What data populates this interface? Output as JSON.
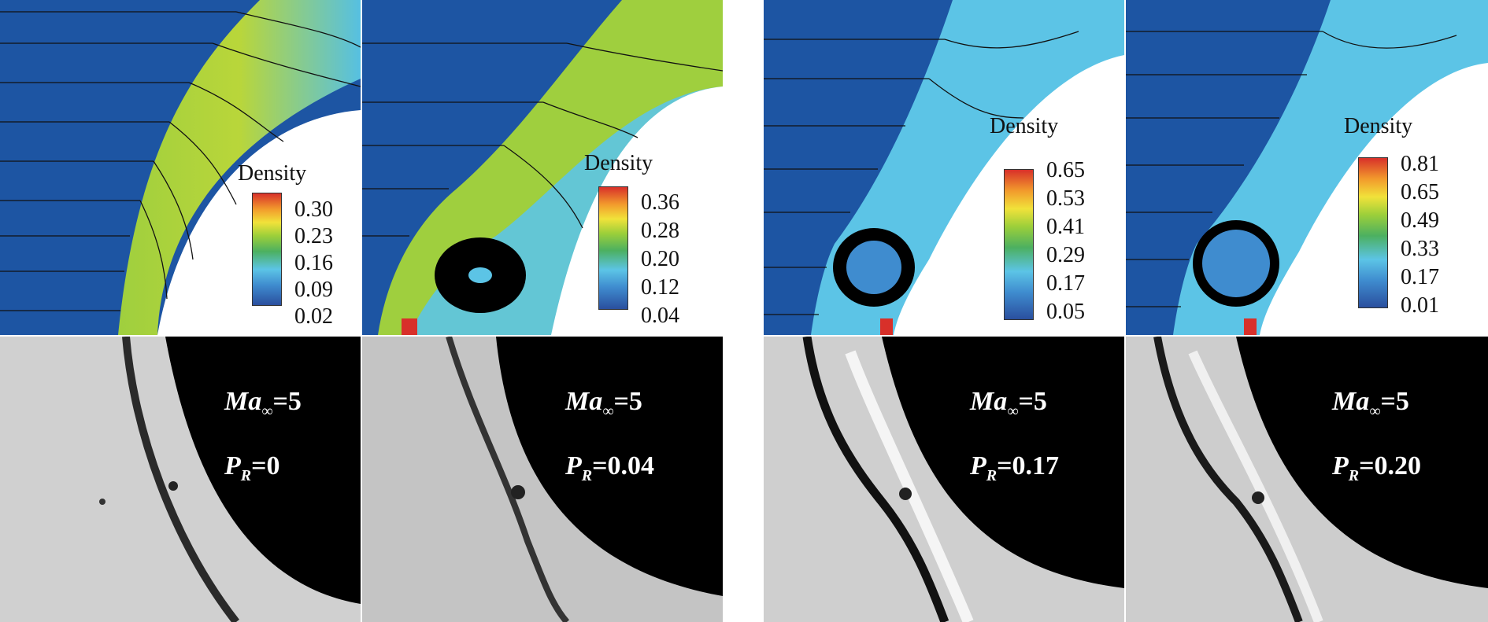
{
  "figure": {
    "panels": [
      {
        "legend_title": "Density",
        "ticks": [
          "0.30",
          "0.23",
          "0.16",
          "0.09",
          "0.02"
        ],
        "mach_prefix": "Ma",
        "mach_symbol": "∞",
        "mach_value": "=5",
        "pr_prefix": "P",
        "pr_sub": "R",
        "pr_value": "=0"
      },
      {
        "legend_title": "Density",
        "ticks": [
          "0.36",
          "0.28",
          "0.20",
          "0.12",
          "0.04"
        ],
        "mach_prefix": "Ma",
        "mach_symbol": "∞",
        "mach_value": "=5",
        "pr_prefix": "P",
        "pr_sub": "R",
        "pr_value": "=0.04"
      },
      {
        "legend_title": "Density",
        "ticks": [
          "0.65",
          "0.53",
          "0.41",
          "0.29",
          "0.17",
          "0.05"
        ],
        "mach_prefix": "Ma",
        "mach_symbol": "∞",
        "mach_value": "=5",
        "pr_prefix": "P",
        "pr_sub": "R",
        "pr_value": "=0.17"
      },
      {
        "legend_title": "Density",
        "ticks": [
          "0.81",
          "0.65",
          "0.49",
          "0.33",
          "0.17",
          "0.01"
        ],
        "mach_prefix": "Ma",
        "mach_symbol": "∞",
        "mach_value": "=5",
        "pr_prefix": "P",
        "pr_sub": "R",
        "pr_value": "=0.20"
      }
    ]
  }
}
